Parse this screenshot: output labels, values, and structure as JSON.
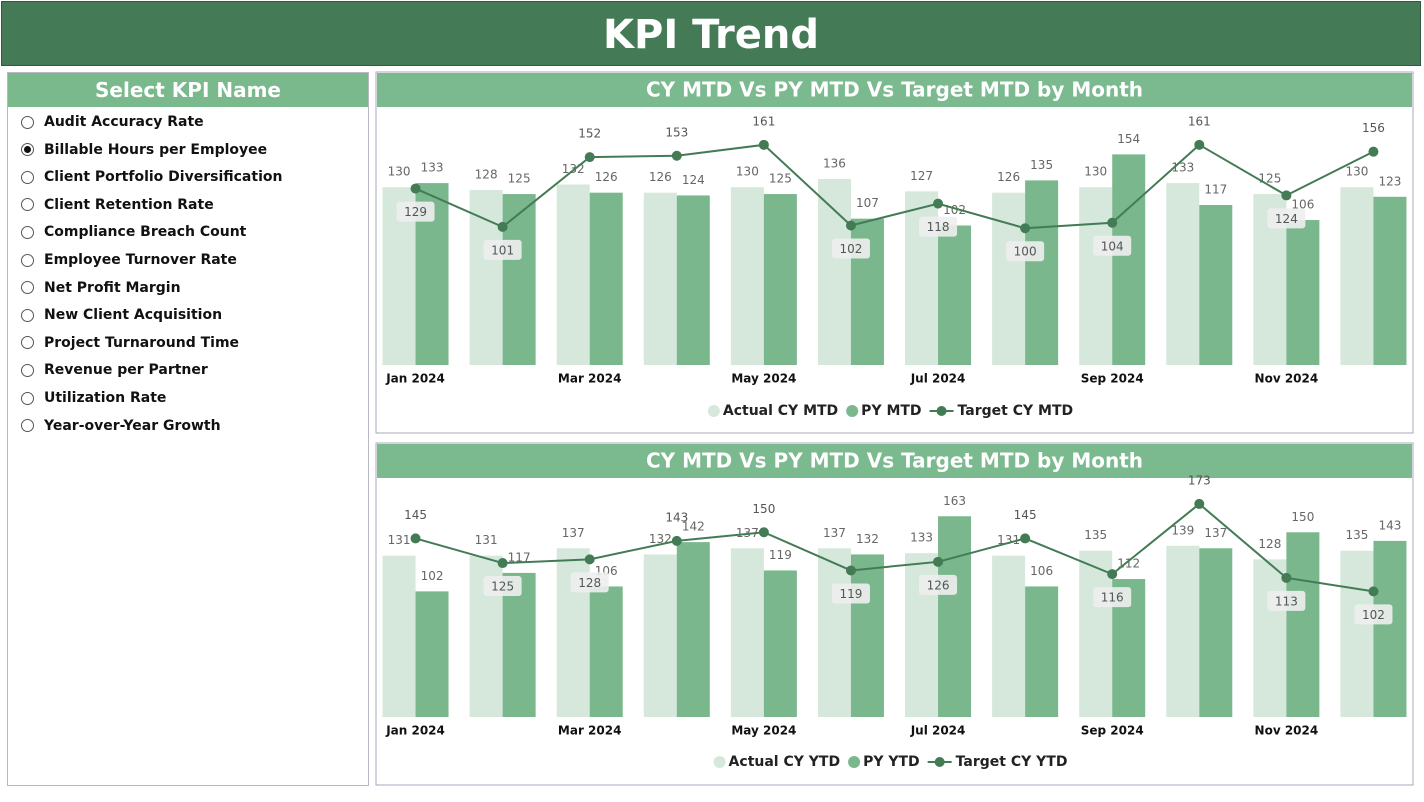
{
  "header": {
    "title": "KPI Trend"
  },
  "slicer": {
    "title": "Select KPI Name",
    "selected": 1,
    "options": [
      "Audit Accuracy Rate",
      "Billable Hours per Employee",
      "Client Portfolio Diversification",
      "Client Retention Rate",
      "Compliance Breach Count",
      "Employee Turnover Rate",
      "Net Profit Margin",
      "New Client Acquisition",
      "Project Turnaround Time",
      "Revenue per Partner",
      "Utilization Rate",
      "Year-over-Year Growth"
    ]
  },
  "chart_data": [
    {
      "type": "bar-line",
      "title": "CY MTD Vs PY MTD Vs Target MTD by Month",
      "categories": [
        "Jan 2024",
        null,
        "Mar 2024",
        null,
        "May 2024",
        null,
        "Jul 2024",
        null,
        "Sep 2024",
        null,
        "Nov 2024",
        null
      ],
      "ylim": [
        0,
        185
      ],
      "series": [
        {
          "name": "Actual CY MTD",
          "type": "bar",
          "color": "#d5e8db",
          "values": [
            130,
            128,
            132,
            126,
            130,
            136,
            127,
            126,
            130,
            133,
            125,
            130
          ]
        },
        {
          "name": "PY MTD",
          "type": "bar",
          "color": "#7ab78d",
          "values": [
            133,
            125,
            126,
            124,
            125,
            107,
            102,
            135,
            154,
            117,
            106,
            123
          ]
        },
        {
          "name": "Target CY MTD",
          "type": "line",
          "color": "#437b55",
          "values": [
            129,
            101,
            152,
            153,
            161,
            102,
            118,
            100,
            104,
            161,
            124,
            156
          ]
        }
      ]
    },
    {
      "type": "bar-line",
      "title": "CY MTD Vs PY MTD Vs Target MTD by Month",
      "categories": [
        "Jan 2024",
        null,
        "Mar 2024",
        null,
        "May 2024",
        null,
        "Jul 2024",
        null,
        "Sep 2024",
        null,
        "Nov 2024",
        null
      ],
      "ylim": [
        0,
        190
      ],
      "series": [
        {
          "name": "Actual CY YTD",
          "type": "bar",
          "color": "#d5e8db",
          "values": [
            131,
            131,
            137,
            132,
            137,
            137,
            133,
            131,
            135,
            139,
            128,
            135
          ]
        },
        {
          "name": "PY YTD",
          "type": "bar",
          "color": "#7ab78d",
          "values": [
            102,
            117,
            106,
            142,
            119,
            132,
            163,
            106,
            112,
            137,
            150,
            143
          ]
        },
        {
          "name": "Target CY YTD",
          "type": "line",
          "color": "#437b55",
          "values": [
            145,
            125,
            128,
            143,
            150,
            119,
            126,
            145,
            116,
            173,
            113,
            102
          ]
        }
      ]
    }
  ]
}
